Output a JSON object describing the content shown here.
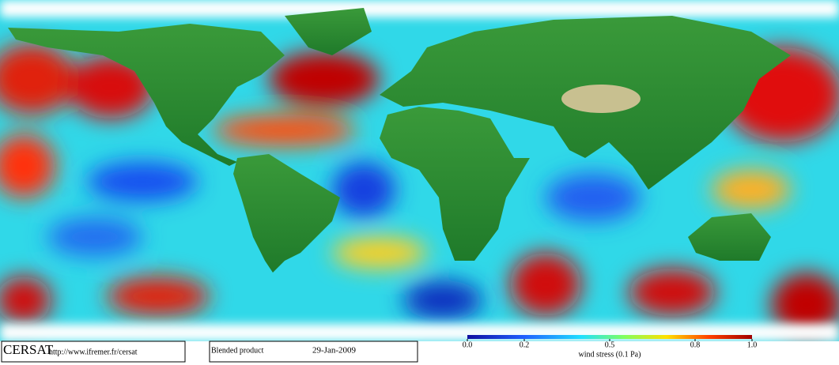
{
  "footer": {
    "logo": "CERSAT",
    "url": "http://www.ifremer.fr/cersat",
    "product": "Blended product",
    "date": "29-Jan-2009"
  },
  "colorbar": {
    "label": "wind stress (0.1 Pa)",
    "range": [
      0,
      1
    ],
    "ticks": [
      {
        "value": 0,
        "label": "0.0"
      },
      0.2,
      0.5,
      0.8,
      {
        "value": 1,
        "label": "1.0"
      }
    ]
  }
}
